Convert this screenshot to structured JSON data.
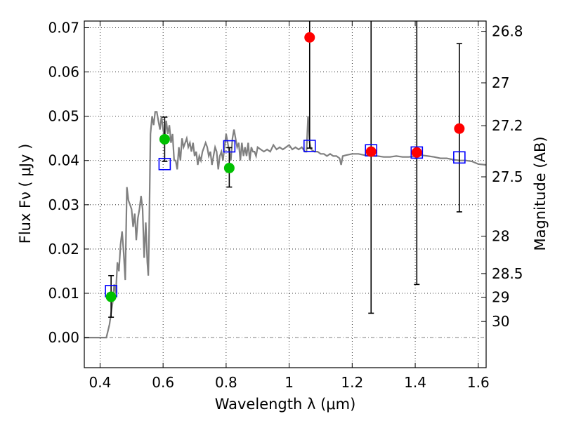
{
  "chart_data": {
    "type": "scatter",
    "xlabel": "Wavelength  λ (μm)",
    "ylabel": "Flux  Fν  ( μJy )",
    "y2label": "Magnitude (AB)",
    "xlim": [
      0.35,
      1.625
    ],
    "ylim": [
      -0.0068,
      0.0715
    ],
    "x_ticks": [
      0.4,
      0.6,
      0.8,
      1.0,
      1.2,
      1.4,
      1.6
    ],
    "x_tick_labels": [
      "0.4",
      "0.6",
      "0.8",
      "1",
      "1.2",
      "1.4",
      "1.6"
    ],
    "y_ticks": [
      0.0,
      0.01,
      0.02,
      0.03,
      0.04,
      0.05,
      0.06,
      0.07
    ],
    "y_tick_labels": [
      "0.00",
      "0.01",
      "0.02",
      "0.03",
      "0.04",
      "0.05",
      "0.06",
      "0.07"
    ],
    "y2_ticks": [
      26.8,
      27.0,
      27.2,
      27.5,
      28.0,
      28.5,
      29.0,
      30.0
    ],
    "y2_tick_labels": [
      "26.8",
      "27",
      "27.2",
      "27.5",
      "28",
      "28.5",
      "29",
      "30"
    ],
    "grid": true,
    "colors": {
      "model": "#808080",
      "optical_points": "#00c000",
      "nir_points": "#ff0000",
      "model_photometry": "#0000ff",
      "errorbars": "#000000",
      "zero_line": "#808080"
    },
    "model_spectrum": {
      "x": [
        0.35,
        0.42,
        0.43,
        0.44,
        0.445,
        0.45,
        0.455,
        0.46,
        0.465,
        0.47,
        0.475,
        0.48,
        0.485,
        0.49,
        0.495,
        0.5,
        0.505,
        0.51,
        0.515,
        0.52,
        0.525,
        0.53,
        0.535,
        0.54,
        0.545,
        0.55,
        0.553,
        0.555,
        0.56,
        0.565,
        0.57,
        0.575,
        0.58,
        0.585,
        0.59,
        0.595,
        0.6,
        0.605,
        0.61,
        0.615,
        0.62,
        0.625,
        0.63,
        0.635,
        0.64,
        0.645,
        0.65,
        0.655,
        0.66,
        0.665,
        0.67,
        0.675,
        0.68,
        0.685,
        0.69,
        0.695,
        0.7,
        0.705,
        0.71,
        0.715,
        0.72,
        0.725,
        0.73,
        0.735,
        0.74,
        0.745,
        0.75,
        0.755,
        0.76,
        0.765,
        0.77,
        0.775,
        0.78,
        0.785,
        0.79,
        0.795,
        0.8,
        0.805,
        0.81,
        0.815,
        0.82,
        0.825,
        0.83,
        0.835,
        0.84,
        0.845,
        0.85,
        0.855,
        0.86,
        0.865,
        0.87,
        0.875,
        0.88,
        0.885,
        0.89,
        0.895,
        0.9,
        0.91,
        0.92,
        0.93,
        0.94,
        0.95,
        0.96,
        0.97,
        0.98,
        0.99,
        1.0,
        1.01,
        1.02,
        1.03,
        1.04,
        1.05,
        1.055,
        1.06,
        1.065,
        1.07,
        1.08,
        1.09,
        1.1,
        1.11,
        1.12,
        1.13,
        1.14,
        1.15,
        1.16,
        1.165,
        1.17,
        1.18,
        1.2,
        1.22,
        1.24,
        1.26,
        1.28,
        1.3,
        1.32,
        1.34,
        1.36,
        1.38,
        1.4,
        1.42,
        1.44,
        1.46,
        1.48,
        1.5,
        1.52,
        1.54,
        1.56,
        1.58,
        1.6,
        1.625
      ],
      "y": [
        0.0,
        0.0,
        0.003,
        0.008,
        0.012,
        0.01,
        0.017,
        0.015,
        0.021,
        0.024,
        0.019,
        0.013,
        0.034,
        0.031,
        0.03,
        0.029,
        0.025,
        0.028,
        0.022,
        0.027,
        0.029,
        0.032,
        0.029,
        0.018,
        0.026,
        0.017,
        0.014,
        0.021,
        0.046,
        0.05,
        0.048,
        0.051,
        0.051,
        0.049,
        0.047,
        0.05,
        0.047,
        0.045,
        0.049,
        0.046,
        0.048,
        0.044,
        0.046,
        0.04,
        0.04,
        0.038,
        0.043,
        0.04,
        0.045,
        0.043,
        0.044,
        0.045,
        0.043,
        0.044,
        0.042,
        0.044,
        0.041,
        0.042,
        0.039,
        0.041,
        0.04,
        0.042,
        0.043,
        0.044,
        0.043,
        0.041,
        0.042,
        0.039,
        0.041,
        0.043,
        0.042,
        0.038,
        0.041,
        0.042,
        0.04,
        0.043,
        0.046,
        0.044,
        0.042,
        0.04,
        0.045,
        0.047,
        0.045,
        0.043,
        0.044,
        0.04,
        0.044,
        0.041,
        0.043,
        0.041,
        0.044,
        0.04,
        0.043,
        0.042,
        0.042,
        0.041,
        0.043,
        0.0425,
        0.042,
        0.0425,
        0.042,
        0.0435,
        0.0425,
        0.043,
        0.0425,
        0.043,
        0.0435,
        0.0425,
        0.043,
        0.0425,
        0.043,
        0.042,
        0.042,
        0.05,
        0.044,
        0.0425,
        0.042,
        0.042,
        0.0415,
        0.0415,
        0.041,
        0.0415,
        0.041,
        0.041,
        0.0405,
        0.039,
        0.041,
        0.0412,
        0.0415,
        0.0415,
        0.0412,
        0.041,
        0.041,
        0.0408,
        0.0408,
        0.041,
        0.0408,
        0.0408,
        0.041,
        0.0412,
        0.041,
        0.0408,
        0.0405,
        0.0405,
        0.0402,
        0.04,
        0.04,
        0.0398,
        0.0392,
        0.039
      ]
    },
    "series": [
      {
        "marker": "circle",
        "color": "#00c000",
        "x": [
          0.435,
          0.605,
          0.81
        ],
        "y": [
          0.0092,
          0.0448,
          0.0383
        ],
        "yerr_low": [
          0.0046,
          0.005,
          0.0043
        ],
        "yerr_high": [
          0.0048,
          0.005,
          0.0046
        ]
      },
      {
        "marker": "circle",
        "color": "#ff0000",
        "x": [
          1.065,
          1.26,
          1.405,
          1.54
        ],
        "y": [
          0.0678,
          0.042,
          0.0418,
          0.0472
        ],
        "yerr_low": [
          0.025,
          0.0365,
          0.0298,
          0.0188
        ],
        "yerr_high": [
          0.02,
          0.035,
          0.035,
          0.0192
        ]
      },
      {
        "marker": "open-square",
        "color": "#0000ff",
        "x": [
          0.435,
          0.605,
          0.81,
          1.065,
          1.26,
          1.405,
          1.54
        ],
        "y": [
          0.0105,
          0.0392,
          0.0432,
          0.0433,
          0.0423,
          0.0418,
          0.0407
        ]
      }
    ]
  }
}
